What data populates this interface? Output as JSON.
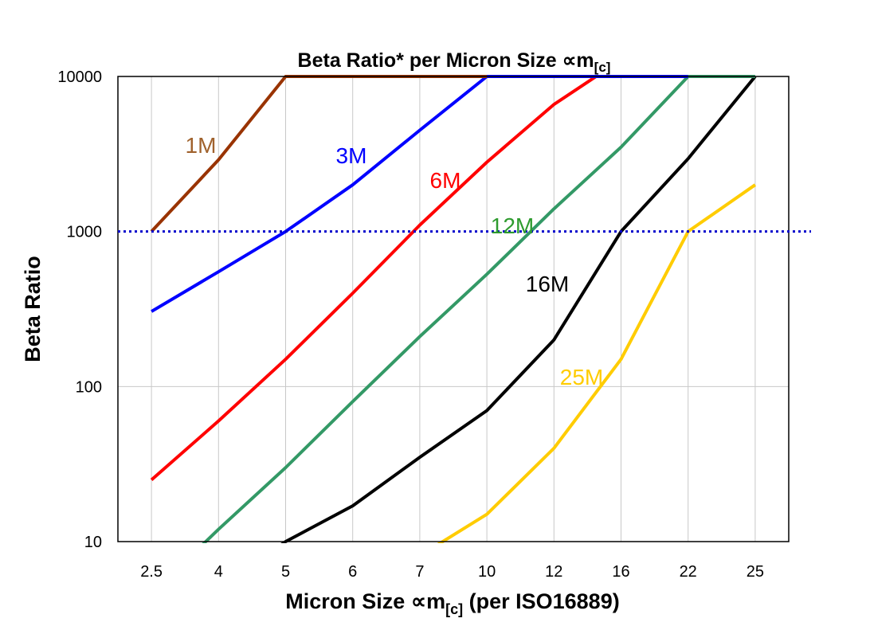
{
  "chart_data": {
    "type": "line",
    "title": "Beta Ratio* per Micron Size ∝m",
    "title_sub": "[c]",
    "xlabel": "Micron Size ∝m",
    "xlabel_sub": "[c]",
    "xlabel_suffix": " (per ISO16889)",
    "ylabel": "Beta Ratio",
    "y_scale": "log",
    "ylim": [
      10,
      10000
    ],
    "y_ticks": [
      "10",
      "100",
      "1000",
      "10000"
    ],
    "categories": [
      "2.5",
      "4",
      "5",
      "6",
      "7",
      "10",
      "12",
      "16",
      "22",
      "25"
    ],
    "grid": "vertical lines at categories, horizontal at 100",
    "reference_line": {
      "value": 1000,
      "color": "#0000cc",
      "style": "dotted"
    },
    "series": [
      {
        "name": "25M",
        "color": "#ffcc00",
        "label_color": "#ffcc00",
        "values": [
          null,
          null,
          null,
          null,
          8.1,
          15,
          40,
          150,
          1000,
          2000
        ]
      },
      {
        "name": "16M",
        "color": "#000000",
        "label_color": "#000000",
        "values": [
          null,
          5,
          10,
          17,
          35,
          70,
          200,
          1000,
          2950,
          10000
        ]
      },
      {
        "name": "12M",
        "color": "#339966",
        "label_color": "#2e9b2e",
        "values": [
          4.6,
          12,
          30,
          80,
          210,
          530,
          1400,
          3500,
          10000,
          10000
        ]
      },
      {
        "name": "6M",
        "color": "#ff0000",
        "label_color": "#ff0000",
        "values": [
          25,
          60,
          150,
          400,
          1100,
          2800,
          6600,
          12800,
          null,
          null
        ]
      },
      {
        "name": "3M",
        "color": "#0000ff",
        "label_color": "#0000ff",
        "values": [
          305,
          550,
          1000,
          2000,
          4500,
          10000,
          10000,
          10000,
          10000,
          null
        ]
      },
      {
        "name": "1M",
        "color": "#993300",
        "label_color": "#a0622d",
        "values": [
          1000,
          2900,
          10000,
          10000,
          10000,
          10000,
          null,
          null,
          null,
          null
        ]
      }
    ]
  }
}
